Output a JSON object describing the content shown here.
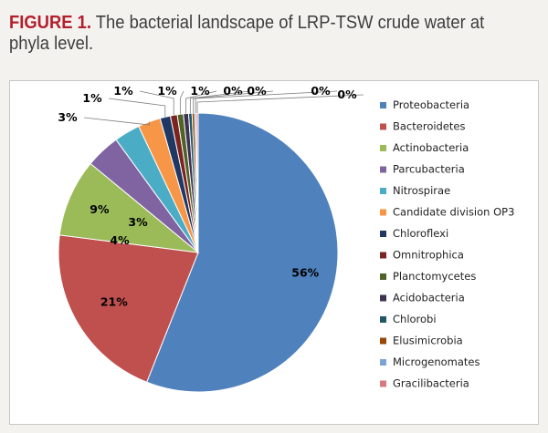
{
  "figure": {
    "label": "FIGURE 1.",
    "caption": " The bacterial landscape of LRP-TSW crude water at phyla level."
  },
  "chart_data": {
    "type": "pie",
    "title": "",
    "legend_position": "right",
    "slices": [
      {
        "name": "Proteobacteria",
        "value": 56,
        "label": "56%",
        "color": "#4f81bd"
      },
      {
        "name": "Bacteroidetes",
        "value": 21,
        "label": "21%",
        "color": "#c0504d"
      },
      {
        "name": "Actinobacteria",
        "value": 9,
        "label": "9%",
        "color": "#9bbb59"
      },
      {
        "name": "Parcubacteria",
        "value": 4,
        "label": "4%",
        "color": "#8064a2"
      },
      {
        "name": "Nitrospirae",
        "value": 3,
        "label": "3%",
        "color": "#4bacc6"
      },
      {
        "name": "Candidate division OP3",
        "value": 2.6,
        "label": "3%",
        "color": "#f79646"
      },
      {
        "name": "Chloroflexi",
        "value": 1.2,
        "label": "1%",
        "color": "#1f3864"
      },
      {
        "name": "Omnitrophica",
        "value": 0.8,
        "label": "1%",
        "color": "#7b2420"
      },
      {
        "name": "Planctomycetes",
        "value": 0.7,
        "label": "1%",
        "color": "#4f6228"
      },
      {
        "name": "Acidobacteria",
        "value": 0.6,
        "label": "1%",
        "color": "#3f3151"
      },
      {
        "name": "Chlorobi",
        "value": 0.4,
        "label": "0%",
        "color": "#205867"
      },
      {
        "name": "Elusimicrobia",
        "value": 0.3,
        "label": "0%",
        "color": "#984807"
      },
      {
        "name": "Microgenomates",
        "value": 0.2,
        "label": "0%",
        "color": "#7ba4d4"
      },
      {
        "name": "Gracilibacteria",
        "value": 0.2,
        "label": "0%",
        "color": "#d8797a"
      }
    ]
  }
}
